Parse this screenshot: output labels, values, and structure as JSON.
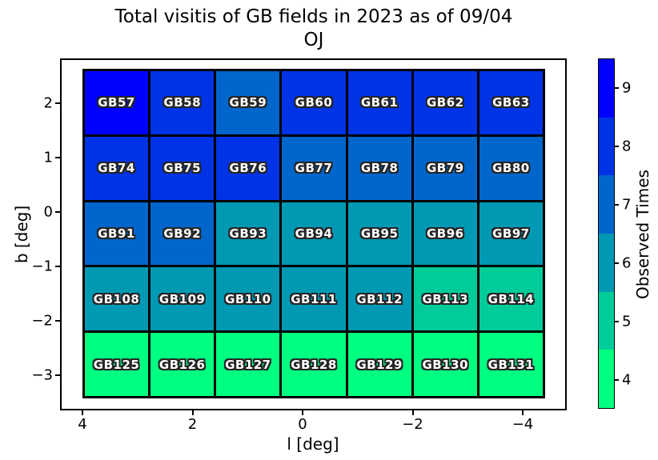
{
  "title": {
    "line1": "Total visitis of GB fields in 2023 as of 09/04",
    "line2": "OJ"
  },
  "x_axis": {
    "label": "l [deg]",
    "ticks": [
      "4",
      "2",
      "0",
      "−2",
      "−4"
    ]
  },
  "y_axis": {
    "label": "b [deg]",
    "ticks": [
      "2",
      "1",
      "0",
      "−1",
      "−2",
      "−3"
    ]
  },
  "colorbar": {
    "label": "Observed Times",
    "levels": [
      {
        "value": "9",
        "color": "#0000ff"
      },
      {
        "value": "8",
        "color": "#0033e5"
      },
      {
        "value": "7",
        "color": "#0066cc"
      },
      {
        "value": "6",
        "color": "#0099b3"
      },
      {
        "value": "5",
        "color": "#00cc99"
      },
      {
        "value": "4",
        "color": "#00ff80"
      }
    ]
  },
  "chart_data": {
    "type": "heatmap",
    "title": "Total visitis of GB fields in 2023 as of 09/04 OJ",
    "xlabel": "l [deg]",
    "ylabel": "b [deg]",
    "colorbar_label": "Observed Times",
    "x_axis": {
      "tick_values": [
        4,
        2,
        0,
        -2,
        -4
      ],
      "inverted": true
    },
    "y_axis": {
      "tick_values": [
        2,
        1,
        0,
        -1,
        -2,
        -3
      ]
    },
    "value_range": [
      4,
      9
    ],
    "colormap": {
      "4": "#00ff80",
      "5": "#00cc99",
      "6": "#0099b3",
      "7": "#0066cc",
      "8": "#0033e5",
      "9": "#0000ff"
    },
    "rows": [
      {
        "cells": [
          {
            "field": "GB57",
            "value": 9
          },
          {
            "field": "GB58",
            "value": 8
          },
          {
            "field": "GB59",
            "value": 7
          },
          {
            "field": "GB60",
            "value": 8
          },
          {
            "field": "GB61",
            "value": 8
          },
          {
            "field": "GB62",
            "value": 8
          },
          {
            "field": "GB63",
            "value": 8
          }
        ]
      },
      {
        "cells": [
          {
            "field": "GB74",
            "value": 8
          },
          {
            "field": "GB75",
            "value": 8
          },
          {
            "field": "GB76",
            "value": 8
          },
          {
            "field": "GB77",
            "value": 7
          },
          {
            "field": "GB78",
            "value": 7
          },
          {
            "field": "GB79",
            "value": 7
          },
          {
            "field": "GB80",
            "value": 7
          }
        ]
      },
      {
        "cells": [
          {
            "field": "GB91",
            "value": 7
          },
          {
            "field": "GB92",
            "value": 7
          },
          {
            "field": "GB93",
            "value": 6
          },
          {
            "field": "GB94",
            "value": 6
          },
          {
            "field": "GB95",
            "value": 6
          },
          {
            "field": "GB96",
            "value": 6
          },
          {
            "field": "GB97",
            "value": 6
          }
        ]
      },
      {
        "cells": [
          {
            "field": "GB108",
            "value": 6
          },
          {
            "field": "GB109",
            "value": 6
          },
          {
            "field": "GB110",
            "value": 6
          },
          {
            "field": "GB111",
            "value": 6
          },
          {
            "field": "GB112",
            "value": 6
          },
          {
            "field": "GB113",
            "value": 5
          },
          {
            "field": "GB114",
            "value": 5
          }
        ]
      },
      {
        "cells": [
          {
            "field": "GB125",
            "value": 4
          },
          {
            "field": "GB126",
            "value": 4
          },
          {
            "field": "GB127",
            "value": 4
          },
          {
            "field": "GB128",
            "value": 4
          },
          {
            "field": "GB129",
            "value": 4
          },
          {
            "field": "GB130",
            "value": 4
          },
          {
            "field": "GB131",
            "value": 4
          }
        ]
      }
    ]
  }
}
